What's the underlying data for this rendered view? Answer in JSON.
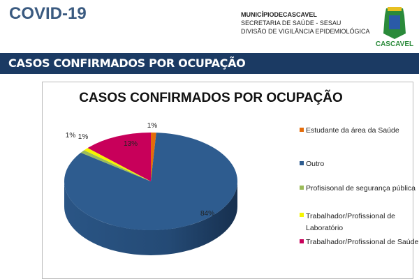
{
  "header": {
    "title": "COVID-19",
    "org_line1": "MUNICÍPIODECASCAVEL",
    "org_line2": "SECRETARIA DE SAÚDE - SESAU",
    "org_line3": "DIVISÃO DE VIGILÂNCIA EPIDEMIOLÓGICA",
    "logo_text": "CASCAVEL"
  },
  "banner": {
    "title": "CASOS CONFIRMADOS POR OCUPAÇÃO"
  },
  "chart_data": {
    "type": "pie",
    "title": "CASOS CONFIRMADOS POR OCUPAÇÃO",
    "style": "3d",
    "legend": "right",
    "categories": [
      "Estudante da área da Saúde",
      "Outro",
      "Profisisonal de segurança pública",
      "Trabalhador/Profissional de Laboratório",
      "Trabalhador/Profissional de Saúde"
    ],
    "values": [
      1,
      84,
      1,
      1,
      13
    ],
    "labels": [
      "1%",
      "84%",
      "1%",
      "1%",
      "13%"
    ],
    "colors": [
      "#e46c0a",
      "#2e5c8f",
      "#9bbb59",
      "#f5f500",
      "#c8005a"
    ]
  }
}
